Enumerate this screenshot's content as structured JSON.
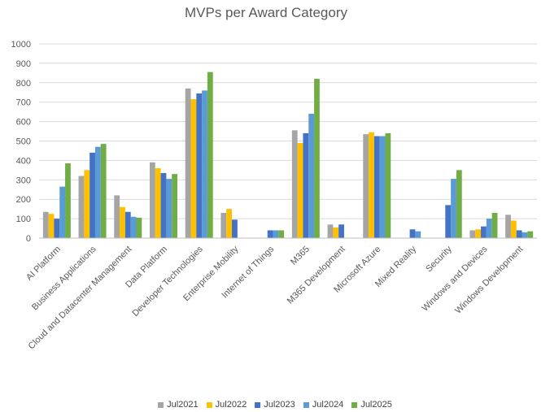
{
  "chart_data": {
    "type": "bar",
    "title": "MVPs per Award Category",
    "xlabel": "",
    "ylabel": "",
    "ylim": [
      0,
      1000
    ],
    "yticks": [
      0,
      100,
      200,
      300,
      400,
      500,
      600,
      700,
      800,
      900,
      1000
    ],
    "grid": true,
    "legend_position": "bottom",
    "categories": [
      "AI Platform",
      "Business Applications",
      "Cloud and Datacenter Management",
      "Data Platform",
      "Developer Technologies",
      "Enterprise Mobility",
      "Internet of Things",
      "M365",
      "M365 Development",
      "Microsoft Azure",
      "Mixed Reality",
      "Security",
      "Windows and Devices",
      "Windows Development"
    ],
    "series": [
      {
        "name": "Jul2021",
        "color": "#a5a5a5",
        "values": [
          135,
          320,
          220,
          390,
          770,
          130,
          null,
          555,
          70,
          535,
          null,
          null,
          40,
          120
        ]
      },
      {
        "name": "Jul2022",
        "color": "#ffc000",
        "values": [
          125,
          350,
          160,
          360,
          715,
          150,
          null,
          490,
          55,
          545,
          null,
          null,
          45,
          90
        ]
      },
      {
        "name": "Jul2023",
        "color": "#4472c4",
        "values": [
          100,
          440,
          135,
          335,
          745,
          95,
          40,
          540,
          70,
          525,
          45,
          170,
          60,
          40
        ]
      },
      {
        "name": "Jul2024",
        "color": "#5b9bd5",
        "values": [
          265,
          470,
          110,
          305,
          760,
          null,
          40,
          640,
          null,
          525,
          35,
          305,
          100,
          30
        ]
      },
      {
        "name": "Jul2025",
        "color": "#70ad47",
        "values": [
          385,
          485,
          105,
          330,
          855,
          null,
          40,
          820,
          null,
          540,
          null,
          350,
          130,
          35
        ]
      }
    ]
  }
}
